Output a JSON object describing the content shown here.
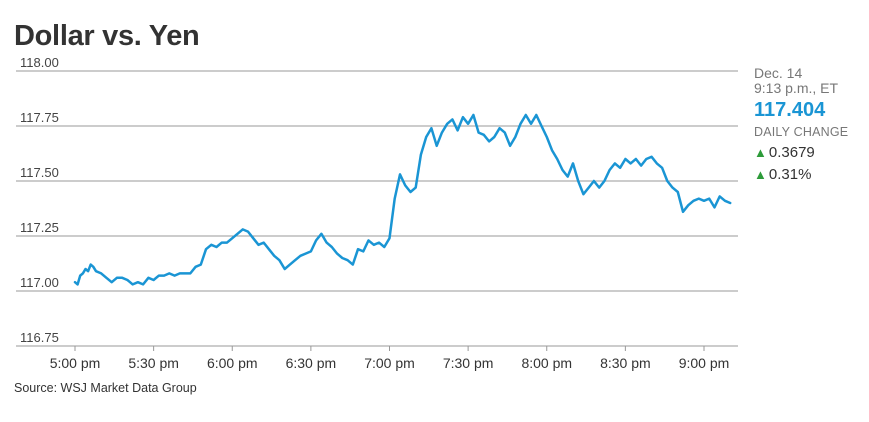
{
  "colors": {
    "line": "#1a95d4",
    "up": "#2d9b3a",
    "grid": "#999999",
    "text": "#333333",
    "muted": "#777777"
  },
  "title": "Dollar vs. Yen",
  "side_panel": {
    "date": "Dec. 14",
    "time": "9:13 p.m., ET",
    "price": "117.404",
    "change_label": "DAILY CHANGE",
    "change_abs": "0.3679",
    "change_pct": "0.31%",
    "arrow_icon": "up-triangle-icon"
  },
  "source": "Source: WSJ Market Data Group",
  "chart_data": {
    "type": "line",
    "title": "Dollar vs. Yen",
    "xlabel": "",
    "ylabel": "",
    "x_unit": "minutes after 5:00 pm",
    "xlim": [
      0,
      395
    ],
    "ylim": [
      116.75,
      118.0
    ],
    "yticks": [
      "118.00",
      "117.75",
      "117.50",
      "117.25",
      "117.00",
      "116.75"
    ],
    "ytick_values": [
      118.0,
      117.75,
      117.5,
      117.25,
      117.0,
      116.75
    ],
    "xticks": [
      "5:00 pm",
      "5:30 pm",
      "6:00 pm",
      "6:30 pm",
      "7:00 pm",
      "7:30 pm",
      "8:00 pm",
      "8:30 pm",
      "9:00 pm"
    ],
    "xtick_values": [
      0,
      30,
      60,
      90,
      120,
      150,
      180,
      210,
      240
    ],
    "grid": "horizontal",
    "series": [
      {
        "x": [
          0,
          1,
          2,
          3,
          4,
          5,
          6,
          7,
          8,
          10,
          12,
          14,
          16,
          18,
          20,
          22,
          24,
          26,
          28,
          30,
          32,
          34,
          36,
          38,
          40,
          42,
          44,
          46,
          48,
          50,
          52,
          54,
          56,
          58,
          60,
          62,
          64,
          66,
          68,
          70,
          72,
          74,
          76,
          78,
          80,
          82,
          84,
          86,
          88,
          90,
          92,
          94,
          96,
          98,
          100,
          102,
          104,
          106,
          108,
          110,
          112,
          114,
          116,
          118,
          120,
          122,
          124,
          126,
          128,
          130,
          132,
          134,
          136,
          138,
          140,
          142,
          144,
          146,
          148,
          150,
          152,
          154,
          156,
          158,
          160,
          162,
          164,
          166,
          168,
          170,
          172,
          174,
          176,
          178,
          180,
          182,
          184,
          186,
          188,
          190,
          192,
          194,
          196,
          198,
          200,
          202,
          204,
          206,
          208,
          210,
          212,
          214,
          216,
          218,
          220,
          222,
          224,
          226,
          228,
          230,
          232,
          234,
          236,
          238,
          240,
          242,
          244,
          246,
          248,
          250
        ],
        "values": [
          117.04,
          117.03,
          117.07,
          117.08,
          117.1,
          117.09,
          117.12,
          117.11,
          117.09,
          117.08,
          117.06,
          117.04,
          117.06,
          117.06,
          117.05,
          117.03,
          117.04,
          117.03,
          117.06,
          117.05,
          117.07,
          117.07,
          117.08,
          117.07,
          117.08,
          117.08,
          117.08,
          117.11,
          117.12,
          117.19,
          117.21,
          117.2,
          117.22,
          117.22,
          117.24,
          117.26,
          117.28,
          117.27,
          117.24,
          117.21,
          117.22,
          117.19,
          117.16,
          117.14,
          117.1,
          117.12,
          117.14,
          117.16,
          117.17,
          117.18,
          117.23,
          117.26,
          117.22,
          117.2,
          117.17,
          117.15,
          117.14,
          117.12,
          117.19,
          117.18,
          117.23,
          117.21,
          117.22,
          117.2,
          117.24,
          117.42,
          117.53,
          117.48,
          117.45,
          117.47,
          117.62,
          117.7,
          117.74,
          117.66,
          117.72,
          117.76,
          117.78,
          117.73,
          117.79,
          117.76,
          117.8,
          117.72,
          117.71,
          117.68,
          117.7,
          117.74,
          117.72,
          117.66,
          117.7,
          117.76,
          117.8,
          117.76,
          117.8,
          117.75,
          117.7,
          117.64,
          117.6,
          117.55,
          117.52,
          117.58,
          117.5,
          117.44,
          117.47,
          117.5,
          117.47,
          117.5,
          117.55,
          117.58,
          117.56,
          117.6,
          117.58,
          117.6,
          117.57,
          117.6,
          117.61,
          117.58,
          117.56,
          117.5,
          117.47,
          117.45,
          117.36,
          117.39,
          117.41,
          117.42,
          117.41,
          117.42,
          117.38,
          117.43,
          117.41,
          117.4
        ]
      }
    ]
  }
}
